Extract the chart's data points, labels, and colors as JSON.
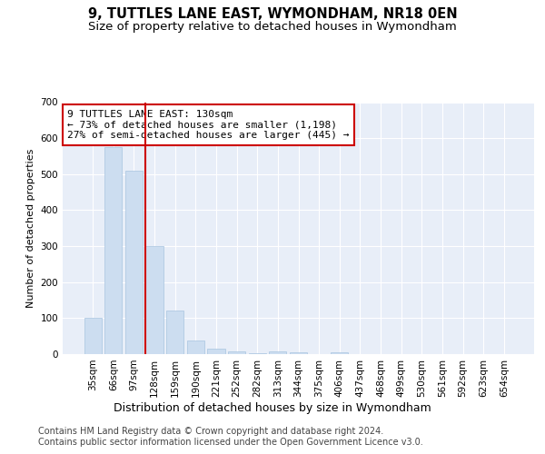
{
  "title": "9, TUTTLES LANE EAST, WYMONDHAM, NR18 0EN",
  "subtitle": "Size of property relative to detached houses in Wymondham",
  "xlabel": "Distribution of detached houses by size in Wymondham",
  "ylabel": "Number of detached properties",
  "bar_color": "#ccddf0",
  "bar_edge_color": "#a8c4e0",
  "bg_color": "#e8eef8",
  "grid_color": "#ffffff",
  "categories": [
    "35sqm",
    "66sqm",
    "97sqm",
    "128sqm",
    "159sqm",
    "190sqm",
    "221sqm",
    "252sqm",
    "282sqm",
    "313sqm",
    "344sqm",
    "375sqm",
    "406sqm",
    "437sqm",
    "468sqm",
    "499sqm",
    "530sqm",
    "561sqm",
    "592sqm",
    "623sqm",
    "654sqm"
  ],
  "values": [
    100,
    575,
    510,
    300,
    120,
    37,
    15,
    8,
    2,
    8,
    6,
    0,
    5,
    0,
    0,
    0,
    0,
    0,
    0,
    0,
    0
  ],
  "property_line_color": "#cc0000",
  "annotation_text": "9 TUTTLES LANE EAST: 130sqm\n← 73% of detached houses are smaller (1,198)\n27% of semi-detached houses are larger (445) →",
  "annotation_box_color": "#cc0000",
  "ylim": [
    0,
    700
  ],
  "yticks": [
    0,
    100,
    200,
    300,
    400,
    500,
    600,
    700
  ],
  "footer_text": "Contains HM Land Registry data © Crown copyright and database right 2024.\nContains public sector information licensed under the Open Government Licence v3.0.",
  "title_fontsize": 10.5,
  "subtitle_fontsize": 9.5,
  "xlabel_fontsize": 9,
  "ylabel_fontsize": 8,
  "tick_fontsize": 7.5,
  "annotation_fontsize": 8,
  "footer_fontsize": 7
}
